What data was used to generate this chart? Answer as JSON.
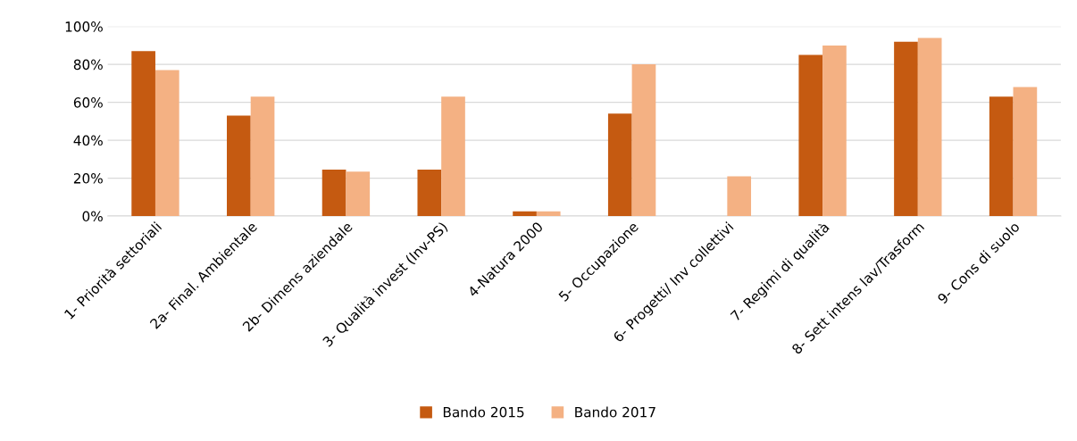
{
  "chart_data": {
    "type": "bar",
    "categories": [
      "1- Priorità settoriali",
      "2a- Final. Ambientale",
      "2b- Dimens aziendale",
      "3- Qualità invest (Inv-PS)",
      "4-Natura 2000",
      "5- Occupazione",
      "6- Progetti/ Inv collettivi",
      "7- Regimi di qualità",
      "8- Sett intens lav/Trasform",
      "9- Cons di suolo"
    ],
    "series": [
      {
        "name": "Bando 2015",
        "color": "#c55a11",
        "values": [
          87,
          53,
          24.5,
          24.5,
          2.5,
          54,
          0,
          85,
          92,
          63
        ]
      },
      {
        "name": "Bando 2017",
        "color": "#f4b183",
        "values": [
          77,
          63,
          23.5,
          63,
          2.5,
          80,
          21,
          90,
          94,
          68
        ]
      }
    ],
    "ylim": [
      0,
      100
    ],
    "yticks": [
      {
        "value": 0,
        "label": "0%"
      },
      {
        "value": 20,
        "label": "20%"
      },
      {
        "value": 40,
        "label": "40%"
      },
      {
        "value": 60,
        "label": "60%"
      },
      {
        "value": 80,
        "label": "80%"
      },
      {
        "value": 100,
        "label": "100%"
      }
    ],
    "grid": "y",
    "legend": "bottom"
  }
}
